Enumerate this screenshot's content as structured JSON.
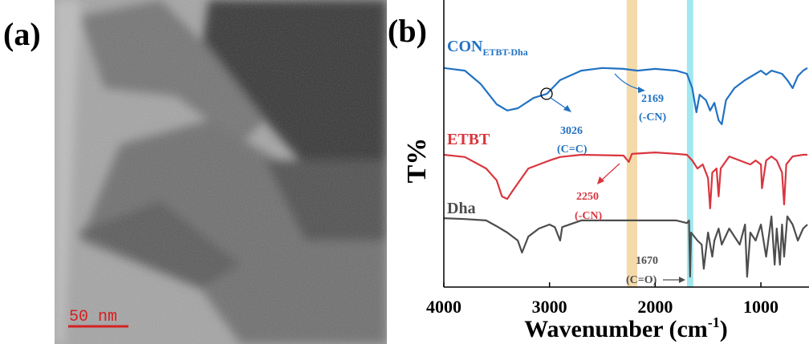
{
  "panel_a": {
    "label": "(a)",
    "scale_bar": "50 nm"
  },
  "chart_data": {
    "type": "line",
    "panel_label": "(b)",
    "x_label": {
      "text": "Wavenumber (cm",
      "superscript": "-1",
      "suffix": ")"
    },
    "y_label": "T%",
    "xlim": [
      4000,
      560
    ],
    "ylim": [
      0,
      100
    ],
    "xticks": [
      4000,
      3000,
      2000,
      1000
    ],
    "bands": [
      {
        "from": 2270,
        "to": 2170,
        "color": "#f3d39a"
      },
      {
        "from": 1700,
        "to": 1640,
        "color": "#8fe3ec"
      }
    ],
    "series": [
      {
        "name": "CON",
        "name_sub": "ETBT-Dha",
        "color": "#2272c3",
        "x": [
          4000,
          3800,
          3650,
          3500,
          3400,
          3300,
          3150,
          3026,
          2900,
          2700,
          2500,
          2300,
          2169,
          2000,
          1800,
          1700,
          1650,
          1610,
          1580,
          1520,
          1480,
          1440,
          1400,
          1370,
          1330,
          1250,
          1150,
          1050,
          1000,
          950,
          900,
          800,
          750,
          700,
          650,
          600,
          560
        ],
        "values": [
          76.3,
          75.4,
          70.7,
          63.7,
          61.5,
          62.3,
          65.9,
          67.3,
          72.1,
          75.4,
          76.3,
          76,
          75.4,
          76,
          75.4,
          74.3,
          69.3,
          60.9,
          67,
          65.1,
          61.5,
          64.2,
          58.1,
          56.7,
          65.1,
          69.3,
          72.1,
          74.3,
          75.4,
          74,
          75.4,
          74.3,
          72.1,
          69.3,
          73.5,
          75.4,
          76.3
        ],
        "annotations": [
          "3026",
          "(C=C)",
          "2169",
          "(-CN)"
        ]
      },
      {
        "name": "ETBT",
        "color": "#d9363e",
        "x": [
          4000,
          3800,
          3600,
          3500,
          3450,
          3400,
          3350,
          3200,
          3100,
          3000,
          2900,
          2700,
          2300,
          2250,
          2220,
          2000,
          1800,
          1700,
          1650,
          1600,
          1550,
          1500,
          1480,
          1460,
          1420,
          1400,
          1380,
          1300,
          1200,
          1100,
          1050,
          1000,
          990,
          950,
          900,
          850,
          800,
          780,
          760,
          700,
          600,
          560
        ],
        "values": [
          46.1,
          45.3,
          41.3,
          37.2,
          31.6,
          30.7,
          33.5,
          41.3,
          42.7,
          44.1,
          45.3,
          46.1,
          45.8,
          43.6,
          46.4,
          46.9,
          46.4,
          46.1,
          44.1,
          41.3,
          42.7,
          38,
          27.4,
          39.9,
          41.3,
          31.6,
          41.3,
          45.5,
          44.1,
          42.7,
          44.1,
          42.7,
          34.4,
          44.1,
          45.5,
          44.1,
          39.9,
          28.8,
          42.7,
          45.5,
          46.1,
          46.1
        ],
        "annotations": [
          "2250",
          "(-CN)"
        ]
      },
      {
        "name": "Dha",
        "color": "#4d4d4d",
        "x": [
          4000,
          3800,
          3600,
          3500,
          3400,
          3300,
          3260,
          3200,
          3100,
          3000,
          2950,
          2900,
          2880,
          2700,
          2300,
          2000,
          1800,
          1700,
          1680,
          1670,
          1660,
          1600,
          1560,
          1540,
          1500,
          1460,
          1440,
          1400,
          1370,
          1300,
          1250,
          1200,
          1150,
          1130,
          1100,
          1050,
          1000,
          950,
          900,
          870,
          850,
          820,
          800,
          780,
          750,
          700,
          650,
          600,
          560
        ],
        "values": [
          24,
          23.7,
          23.2,
          21.2,
          19,
          16.2,
          12,
          17.6,
          20.4,
          21.8,
          20.9,
          16.2,
          20.9,
          23.2,
          23.2,
          23.2,
          23.2,
          22.3,
          23.2,
          3.6,
          19,
          16.2,
          14.8,
          6.4,
          19,
          10.6,
          16.2,
          20.4,
          14.8,
          20.4,
          17.6,
          14.8,
          21.8,
          3.6,
          19,
          16.2,
          21.8,
          10.6,
          24.6,
          7.8,
          20.4,
          7.8,
          21.8,
          10.6,
          24.6,
          21.8,
          16.2,
          20.4,
          21.8
        ],
        "annotations": [
          "1670",
          "(C=O)"
        ]
      }
    ]
  }
}
